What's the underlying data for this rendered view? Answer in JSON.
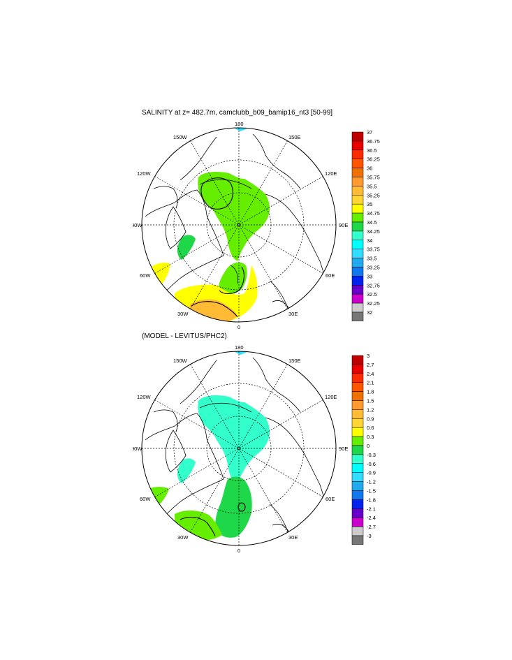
{
  "chart_data": [
    {
      "type": "heatmap",
      "title": "SALINITY at z= 482.7m, camclubb_b09_bamip16_nt3 [50-99]",
      "lon_labels": [
        "180",
        "150E",
        "120E",
        "90E",
        "60E",
        "30E",
        "0",
        "30W",
        "60W",
        "90W",
        "120W",
        "150W"
      ],
      "colorbar": {
        "labels": [
          "37",
          "36.75",
          "36.5",
          "36.25",
          "36",
          "35.75",
          "35.5",
          "35.25",
          "35",
          "34.75",
          "34.5",
          "34.25",
          "34",
          "33.75",
          "33.5",
          "33.25",
          "33",
          "32.75",
          "32.5",
          "32.25",
          "32"
        ],
        "colors": [
          "#c00000",
          "#e80000",
          "#ff2a00",
          "#ff5500",
          "#f07000",
          "#ff9930",
          "#ffbb33",
          "#ffd633",
          "#ffff00",
          "#66ee00",
          "#1fd84a",
          "#33ffcc",
          "#00ffff",
          "#33ddff",
          "#22aaee",
          "#1177ee",
          "#0022ee",
          "#6600cc",
          "#cc00cc",
          "#cccccc",
          "#777777"
        ]
      }
    },
    {
      "type": "heatmap",
      "title": "(MODEL - LEVITUS/PHC2)",
      "lon_labels": [
        "180",
        "150E",
        "120E",
        "90E",
        "60E",
        "30E",
        "0",
        "30W",
        "60W",
        "90W",
        "120W",
        "150W"
      ],
      "colorbar": {
        "labels": [
          "3",
          "2.7",
          "2.4",
          "2.1",
          "1.8",
          "1.5",
          "1.2",
          "0.9",
          "0.6",
          "0.3",
          "0",
          "-0.3",
          "-0.6",
          "-0.9",
          "-1.2",
          "-1.5",
          "-1.8",
          "-2.1",
          "-2.4",
          "-2.7",
          "-3"
        ],
        "colors": [
          "#c00000",
          "#e80000",
          "#ff2a00",
          "#ff5500",
          "#f07000",
          "#ff9930",
          "#ffbb33",
          "#ffd633",
          "#ffff00",
          "#66ee00",
          "#1fd84a",
          "#33ffcc",
          "#00ffff",
          "#33ddff",
          "#22aaee",
          "#1177ee",
          "#0022ee",
          "#6600cc",
          "#cc00cc",
          "#cccccc",
          "#777777"
        ]
      }
    }
  ]
}
